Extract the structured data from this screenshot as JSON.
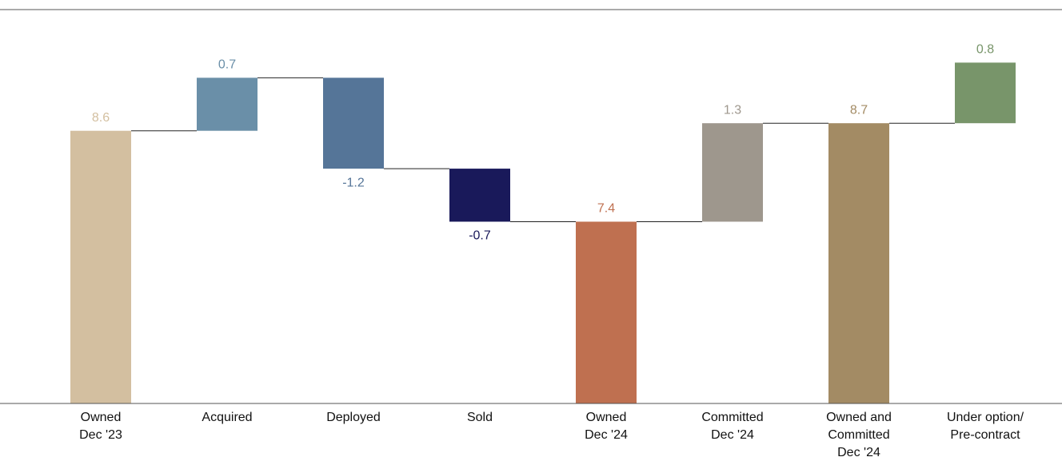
{
  "chart_data": {
    "type": "waterfall",
    "categories": [
      [
        "Owned",
        "Dec '23"
      ],
      [
        "Acquired"
      ],
      [
        "Deployed"
      ],
      [
        "Sold"
      ],
      [
        "Owned",
        "Dec '24"
      ],
      [
        "Committed",
        "Dec '24"
      ],
      [
        "Owned and",
        "Committed",
        "Dec '24"
      ],
      [
        "Under option/",
        "Pre-contract"
      ]
    ],
    "values": [
      8.6,
      0.7,
      -1.2,
      -0.7,
      7.4,
      1.3,
      8.7,
      0.8
    ],
    "measure": [
      "total",
      "relative",
      "relative",
      "relative",
      "total",
      "relative",
      "total",
      "relative"
    ],
    "colors": [
      "#d3bfa0",
      "#6a8fa8",
      "#557598",
      "#19195a",
      "#bf7050",
      "#9e978d",
      "#a38b64",
      "#78956a"
    ],
    "ylim": [
      5,
      10.2
    ]
  }
}
